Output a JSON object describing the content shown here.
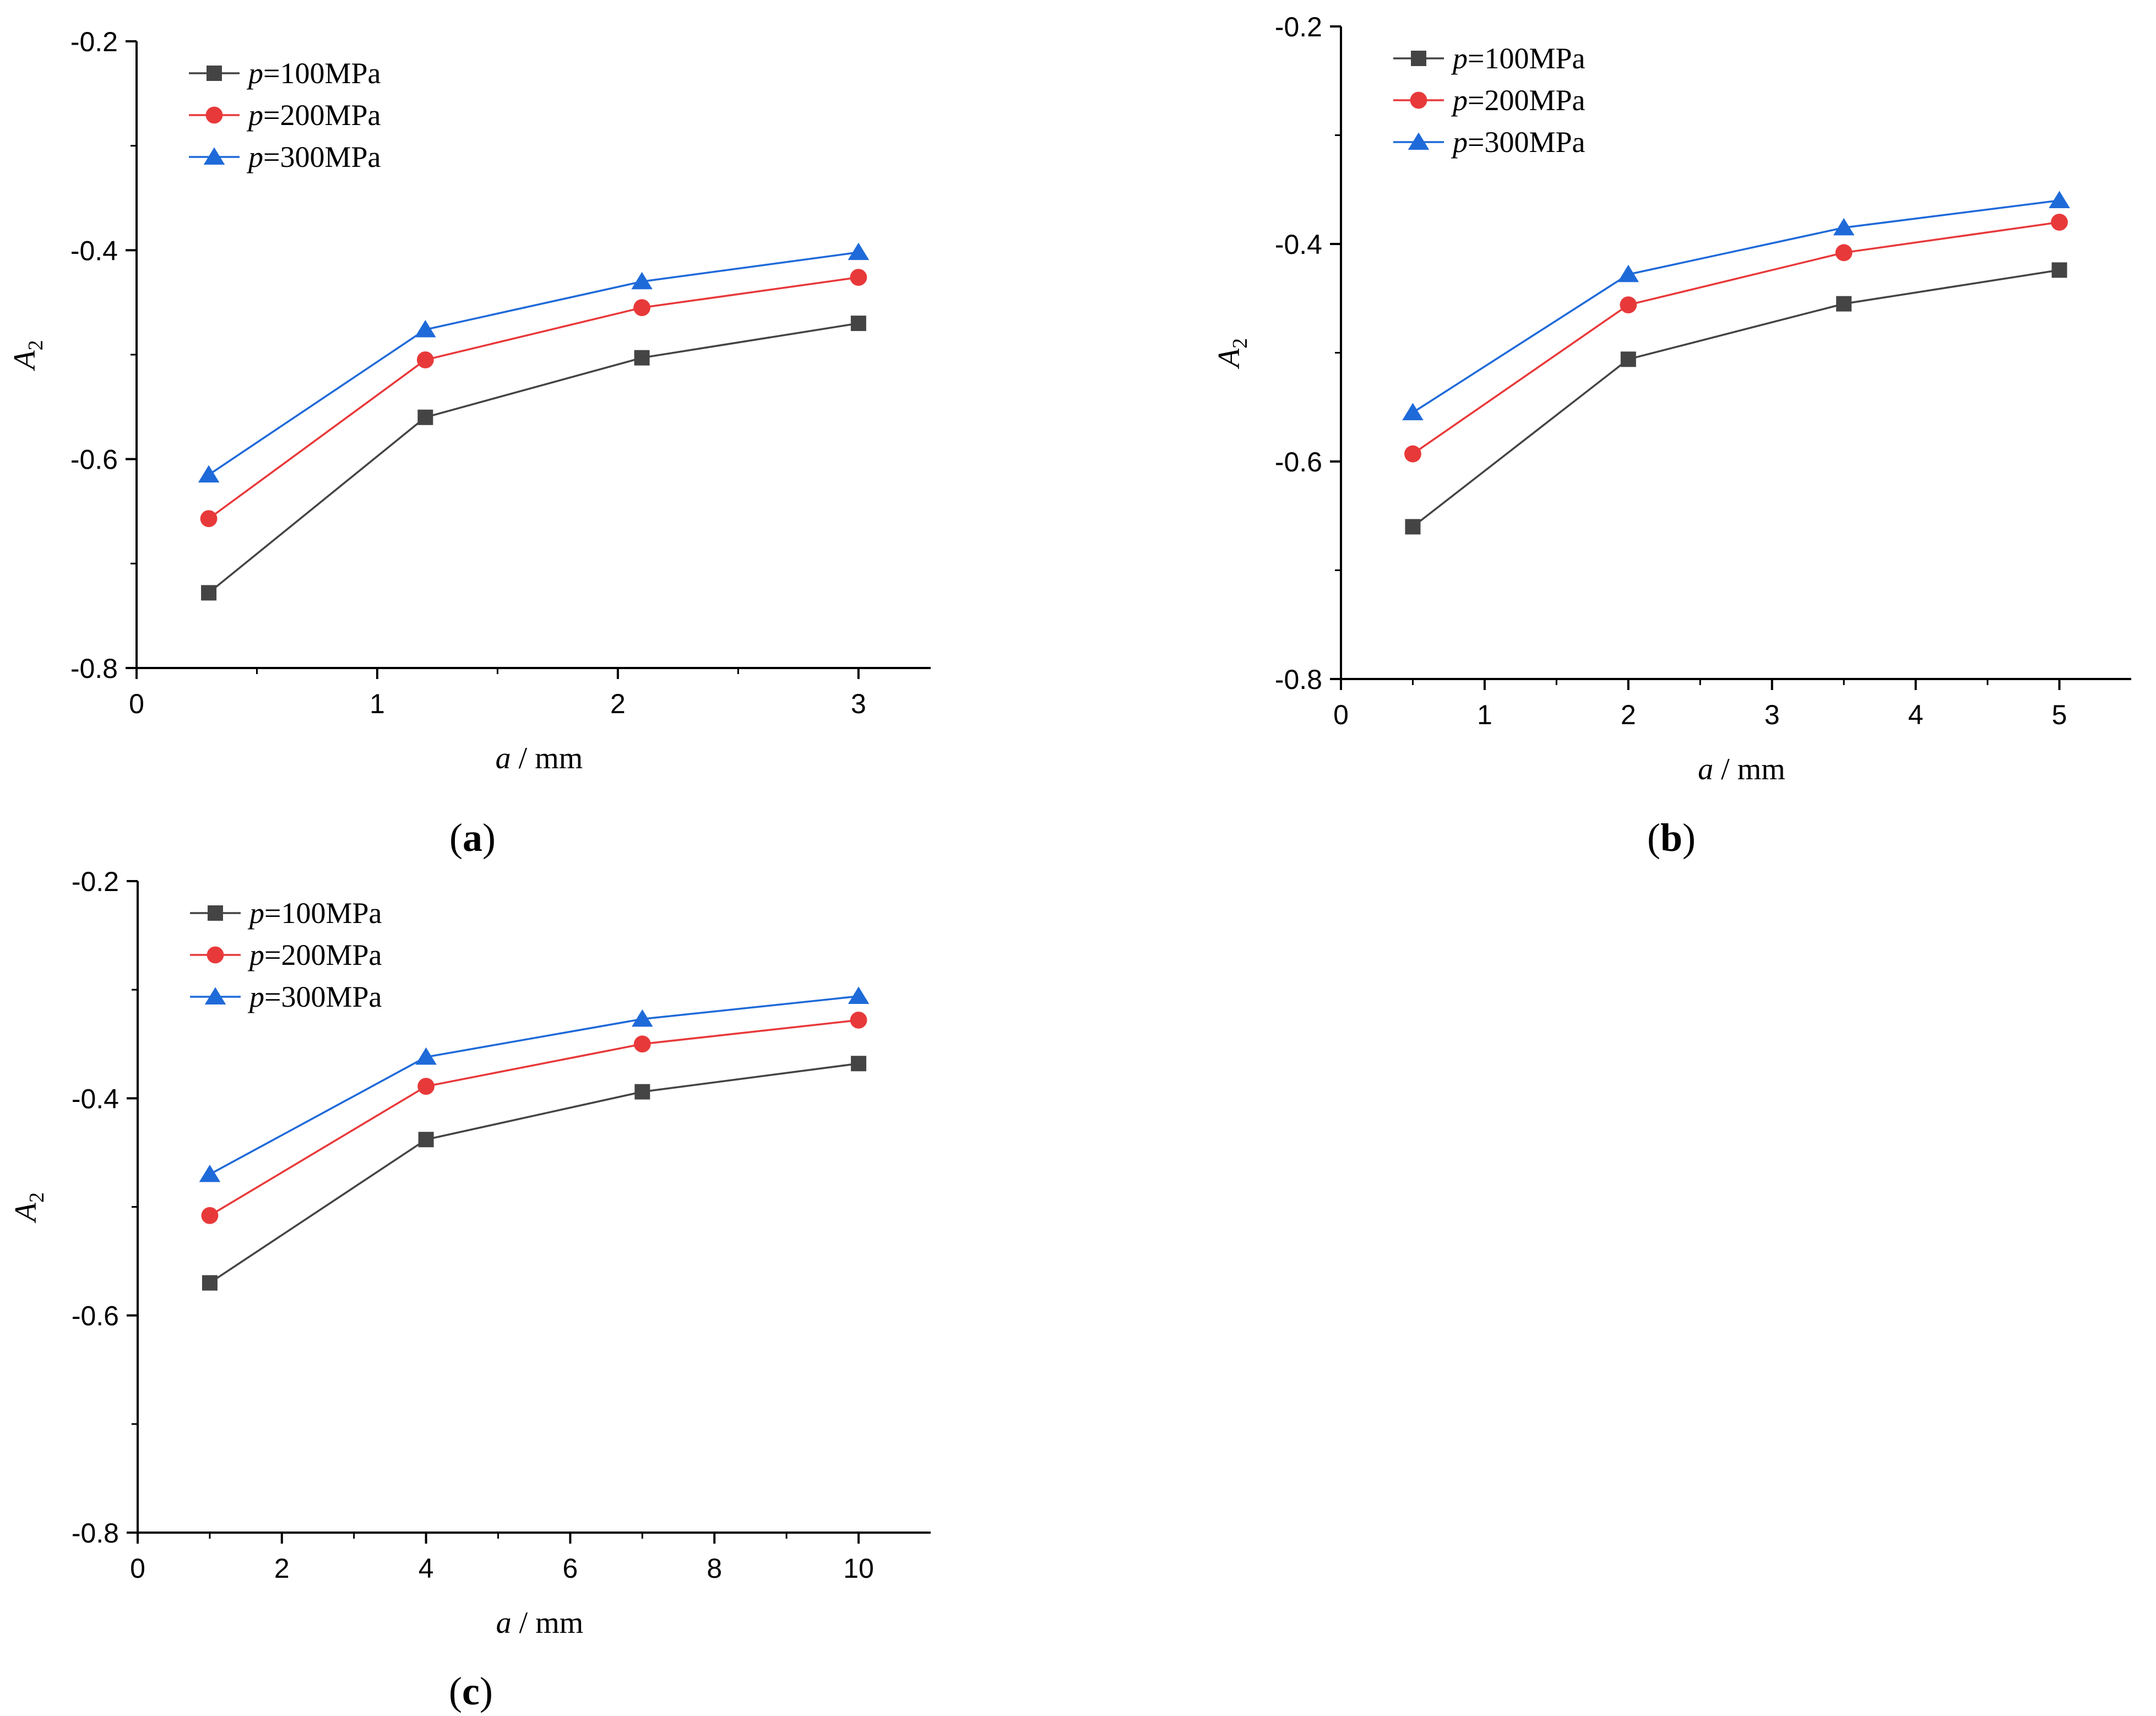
{
  "figure_title": "",
  "chart_data": [
    {
      "type": "line",
      "panel": "a",
      "caption": {
        "open": "(",
        "letter": "a",
        "close": ")"
      },
      "xlabel": {
        "var": "a",
        "unit": " / mm"
      },
      "ylabel": {
        "var": "A",
        "sub": "2"
      },
      "xlim": [
        0,
        3.3
      ],
      "ylim": [
        -0.8,
        -0.2
      ],
      "xticks": [
        0,
        1,
        2,
        3
      ],
      "xtick_labels": [
        "0",
        "1",
        "2",
        "3"
      ],
      "yticks": [
        -0.2,
        -0.4,
        -0.6,
        -0.8
      ],
      "ytick_labels": [
        "-0.2",
        "-0.4",
        "-0.6",
        "-0.8"
      ],
      "x": [
        0.3,
        1.2,
        2.1,
        3.0
      ],
      "legend_position": "top-left",
      "series": [
        {
          "name": "100MPa",
          "prefix": "p",
          "eq": "=",
          "color": "#444444",
          "marker": "square",
          "values": [
            -0.728,
            -0.56,
            -0.503,
            -0.47
          ]
        },
        {
          "name": "200MPa",
          "prefix": "p",
          "eq": "=",
          "color": "#e8393a",
          "marker": "circle",
          "values": [
            -0.657,
            -0.505,
            -0.455,
            -0.426
          ]
        },
        {
          "name": "300MPa",
          "prefix": "p",
          "eq": "=",
          "color": "#1f6ad9",
          "marker": "triangle",
          "values": [
            -0.615,
            -0.476,
            -0.43,
            -0.402
          ]
        }
      ]
    },
    {
      "type": "line",
      "panel": "b",
      "caption": {
        "open": "(",
        "letter": "b",
        "close": ")"
      },
      "xlabel": {
        "var": "a",
        "unit": " / mm"
      },
      "ylabel": {
        "var": "A",
        "sub": "2"
      },
      "xlim": [
        0,
        5.5
      ],
      "ylim": [
        -0.8,
        -0.2
      ],
      "xticks": [
        0,
        1,
        2,
        3,
        4,
        5
      ],
      "xtick_labels": [
        "0",
        "1",
        "2",
        "3",
        "4",
        "5"
      ],
      "yticks": [
        -0.2,
        -0.4,
        -0.6,
        -0.8
      ],
      "ytick_labels": [
        "-0.2",
        "-0.4",
        "-0.6",
        "-0.8"
      ],
      "x": [
        0.5,
        2.0,
        3.5,
        5.0
      ],
      "legend_position": "top-left",
      "series": [
        {
          "name": "100MPa",
          "prefix": "p",
          "eq": "=",
          "color": "#444444",
          "marker": "square",
          "values": [
            -0.66,
            -0.506,
            -0.455,
            -0.424
          ]
        },
        {
          "name": "200MPa",
          "prefix": "p",
          "eq": "=",
          "color": "#e8393a",
          "marker": "circle",
          "values": [
            -0.593,
            -0.456,
            -0.408,
            -0.38
          ]
        },
        {
          "name": "300MPa",
          "prefix": "p",
          "eq": "=",
          "color": "#1f6ad9",
          "marker": "triangle",
          "values": [
            -0.555,
            -0.428,
            -0.385,
            -0.36
          ]
        }
      ]
    },
    {
      "type": "line",
      "panel": "c",
      "caption": {
        "open": "(",
        "letter": "c",
        "close": ")"
      },
      "xlabel": {
        "var": "a",
        "unit": " / mm"
      },
      "ylabel": {
        "var": "A",
        "sub": "2"
      },
      "xlim": [
        0,
        11
      ],
      "ylim": [
        -0.8,
        -0.2
      ],
      "xticks": [
        0,
        2,
        4,
        6,
        8,
        10
      ],
      "xtick_labels": [
        "0",
        "2",
        "4",
        "6",
        "8",
        "10"
      ],
      "yticks": [
        -0.2,
        -0.4,
        -0.6,
        -0.8
      ],
      "ytick_labels": [
        "-0.2",
        "-0.4",
        "-0.6",
        "-0.8"
      ],
      "x": [
        1,
        4,
        7,
        10
      ],
      "legend_position": "top-left",
      "series": [
        {
          "name": "100MPa",
          "prefix": "p",
          "eq": "=",
          "color": "#444444",
          "marker": "square",
          "values": [
            -0.57,
            -0.438,
            -0.394,
            -0.368
          ]
        },
        {
          "name": "200MPa",
          "prefix": "p",
          "eq": "=",
          "color": "#e8393a",
          "marker": "circle",
          "values": [
            -0.508,
            -0.389,
            -0.35,
            -0.328
          ]
        },
        {
          "name": "300MPa",
          "prefix": "p",
          "eq": "=",
          "color": "#1f6ad9",
          "marker": "triangle",
          "values": [
            -0.47,
            -0.362,
            -0.327,
            -0.306
          ]
        }
      ]
    }
  ]
}
